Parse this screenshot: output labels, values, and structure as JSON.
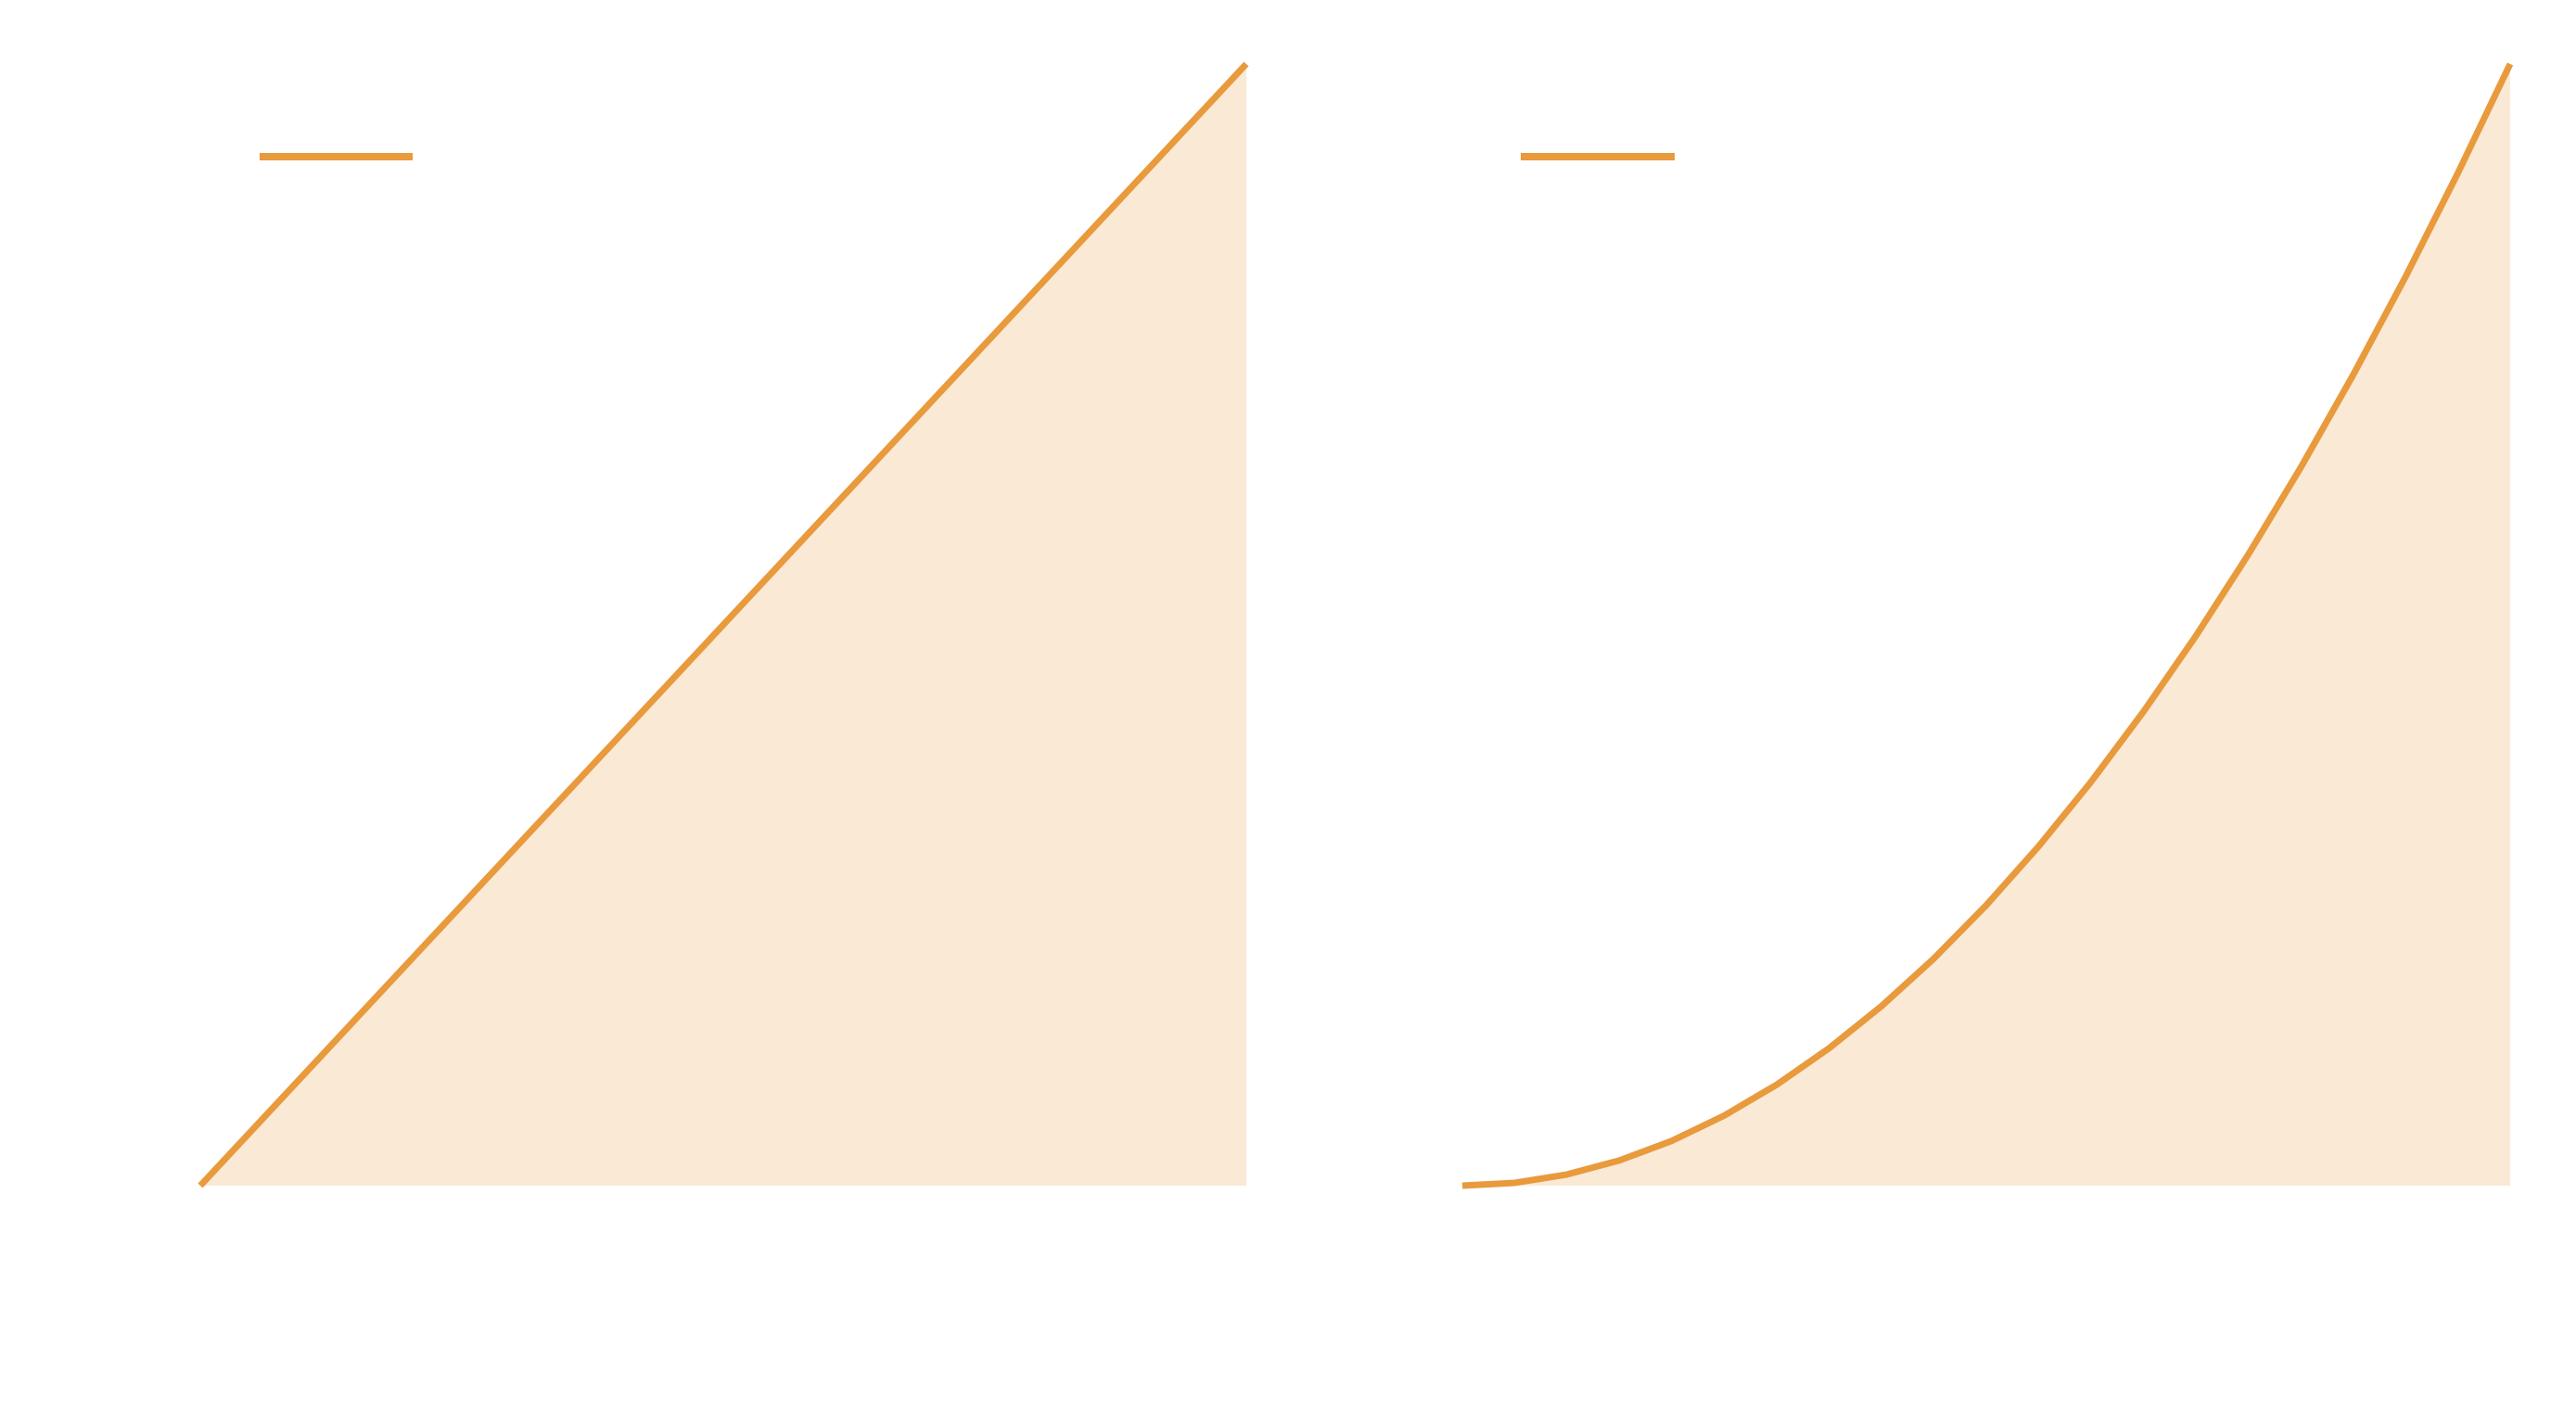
{
  "colors": {
    "background": "#ffffff",
    "line": "#e89a3c",
    "fill": "#fae9d5"
  },
  "chart_data": [
    {
      "type": "area",
      "title": "",
      "xlabel": "",
      "ylabel": "",
      "grid": false,
      "legend_position": "top-left",
      "xlim": [
        0,
        1
      ],
      "ylim": [
        0,
        1
      ],
      "series": [
        {
          "name": "",
          "x": [
            0,
            0.1,
            0.2,
            0.3,
            0.4,
            0.5,
            0.6,
            0.7,
            0.8,
            0.9,
            1.0
          ],
          "y": [
            0,
            0.1,
            0.2,
            0.3,
            0.4,
            0.5,
            0.6,
            0.7,
            0.8,
            0.9,
            1.0
          ]
        }
      ]
    },
    {
      "type": "area",
      "title": "",
      "xlabel": "",
      "ylabel": "",
      "grid": false,
      "legend_position": "top-left",
      "xlim": [
        0,
        1
      ],
      "ylim": [
        0,
        1
      ],
      "series": [
        {
          "name": "",
          "x": [
            0,
            0.05,
            0.1,
            0.15,
            0.2,
            0.25,
            0.3,
            0.35,
            0.4,
            0.45,
            0.5,
            0.55,
            0.6,
            0.65,
            0.7,
            0.75,
            0.8,
            0.85,
            0.9,
            0.95,
            1.0
          ],
          "y": [
            0,
            0.0025,
            0.01,
            0.0225,
            0.04,
            0.0625,
            0.09,
            0.1225,
            0.16,
            0.2025,
            0.25,
            0.3025,
            0.36,
            0.4225,
            0.49,
            0.5625,
            0.64,
            0.7225,
            0.81,
            0.9025,
            1.0
          ]
        }
      ]
    }
  ]
}
